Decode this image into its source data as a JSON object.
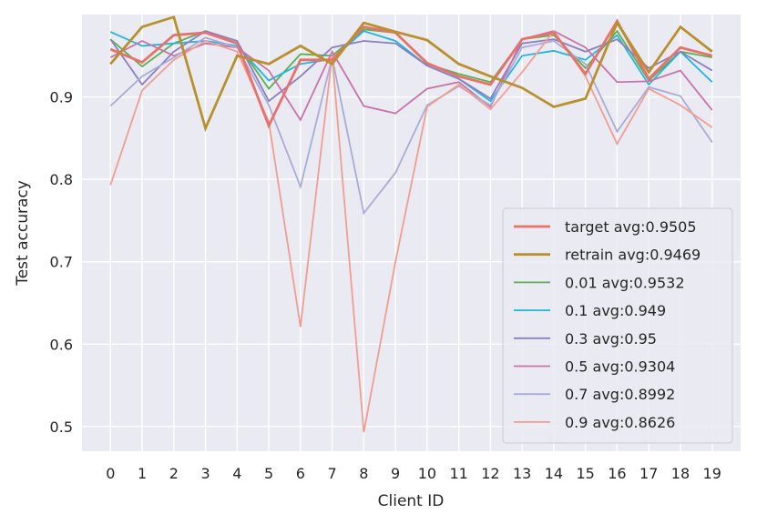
{
  "chart_data": {
    "type": "line",
    "title": "",
    "xlabel": "Client ID",
    "ylabel": "Test accuracy",
    "x": [
      0,
      1,
      2,
      3,
      4,
      5,
      6,
      7,
      8,
      9,
      10,
      11,
      12,
      13,
      14,
      15,
      16,
      17,
      18,
      19
    ],
    "x_tick_labels": [
      "0",
      "1",
      "2",
      "3",
      "4",
      "5",
      "6",
      "7",
      "8",
      "9",
      "10",
      "11",
      "12",
      "13",
      "14",
      "15",
      "16",
      "17",
      "18",
      "19"
    ],
    "xlim": [
      -0.9,
      19.9
    ],
    "ylim": [
      0.47,
      1.0
    ],
    "y_ticks": [
      0.5,
      0.6,
      0.7,
      0.8,
      0.9
    ],
    "y_tick_labels": [
      "0.5",
      "0.6",
      "0.7",
      "0.8",
      "0.9"
    ],
    "grid": true,
    "legend_position": "bottom-right",
    "series": [
      {
        "name": "target avg:0.9505",
        "color": "#e8726b",
        "emphasis": true,
        "values": [
          0.958,
          0.942,
          0.975,
          0.978,
          0.965,
          0.865,
          0.945,
          0.945,
          0.985,
          0.978,
          0.941,
          0.925,
          0.915,
          0.97,
          0.978,
          0.928,
          0.992,
          0.922,
          0.96,
          0.95
        ]
      },
      {
        "name": "retrain avg:0.9469",
        "color": "#b8902d",
        "emphasis": true,
        "values": [
          0.94,
          0.985,
          0.997,
          0.862,
          0.95,
          0.94,
          0.962,
          0.94,
          0.99,
          0.979,
          0.969,
          0.94,
          0.925,
          0.911,
          0.888,
          0.898,
          0.99,
          0.93,
          0.985,
          0.955
        ]
      },
      {
        "name": "0.01 avg:0.9532",
        "color": "#5ab14d",
        "emphasis": false,
        "values": [
          0.97,
          0.937,
          0.965,
          0.98,
          0.965,
          0.91,
          0.952,
          0.95,
          0.982,
          0.978,
          0.94,
          0.928,
          0.918,
          0.97,
          0.975,
          0.935,
          0.98,
          0.92,
          0.955,
          0.948
        ]
      },
      {
        "name": "0.1 avg:0.949",
        "color": "#21b5e0",
        "emphasis": false,
        "values": [
          0.979,
          0.962,
          0.965,
          0.968,
          0.962,
          0.92,
          0.94,
          0.946,
          0.98,
          0.968,
          0.938,
          0.922,
          0.895,
          0.95,
          0.956,
          0.945,
          0.975,
          0.915,
          0.955,
          0.918
        ]
      },
      {
        "name": "0.3 avg:0.95",
        "color": "#8a7fc0",
        "emphasis": false,
        "values": [
          0.97,
          0.915,
          0.955,
          0.98,
          0.968,
          0.895,
          0.925,
          0.96,
          0.968,
          0.965,
          0.938,
          0.922,
          0.898,
          0.965,
          0.97,
          0.955,
          0.97,
          0.935,
          0.955,
          0.932
        ]
      },
      {
        "name": "0.5 avg:0.9304",
        "color": "#c873a8",
        "emphasis": false,
        "values": [
          0.948,
          0.968,
          0.95,
          0.965,
          0.96,
          0.932,
          0.872,
          0.955,
          0.889,
          0.88,
          0.91,
          0.918,
          0.888,
          0.97,
          0.98,
          0.96,
          0.918,
          0.919,
          0.932,
          0.884
        ]
      },
      {
        "name": "0.7 avg:0.8992",
        "color": "#a8acd6",
        "emphasis": false,
        "values": [
          0.889,
          0.925,
          0.948,
          0.972,
          0.96,
          0.89,
          0.791,
          0.948,
          0.759,
          0.808,
          0.89,
          0.913,
          0.89,
          0.96,
          0.968,
          0.94,
          0.858,
          0.912,
          0.901,
          0.845
        ]
      },
      {
        "name": "0.9 avg:0.8626",
        "color": "#f19d92",
        "emphasis": false,
        "values": [
          0.793,
          0.908,
          0.945,
          0.968,
          0.955,
          0.87,
          0.621,
          0.95,
          0.493,
          0.7,
          0.888,
          0.915,
          0.885,
          0.93,
          0.98,
          0.925,
          0.843,
          0.91,
          0.89,
          0.863
        ]
      }
    ]
  }
}
